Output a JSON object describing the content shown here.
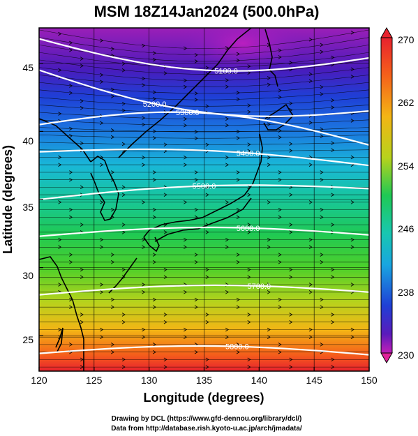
{
  "title": "MSM 18Z14Jan2024 (500.0hPa)",
  "xlabel": "Longitude (degrees)",
  "ylabel": "Latitude  (degrees)",
  "credits": [
    "Drawing by DCL (https://www.gfd-dennou.org/library/dcl/)",
    "Data from http://database.rish.kyoto-u.ac.jp/arch/jmadata/"
  ],
  "map": {
    "lon_range": [
      120,
      150
    ],
    "lat_range": [
      22.4,
      47.6
    ],
    "x_ticks": [
      "120",
      "125",
      "130",
      "135",
      "140",
      "145",
      "150"
    ],
    "y_ticks": [
      "25",
      "30",
      "35",
      "40",
      "45"
    ],
    "shading_variable": "temperature (K)",
    "vector_variable": "wind",
    "contour_variable": "geopotential height (m)",
    "contours": [
      {
        "label": "5100.0",
        "lat_at_west": 46.8,
        "lat_at_east": 45.4,
        "label_lon": 137.0
      },
      {
        "label": "5200.0",
        "lat_at_west": 44.5,
        "lat_at_east": 41.5,
        "label_lon": 130.5
      },
      {
        "label": "5300.0",
        "lat_at_west": 40.5,
        "lat_at_east": 39.0,
        "label_lon": 133.5
      },
      {
        "label": "5400.0",
        "lat_at_west": 38.5,
        "lat_at_east": 37.5,
        "label_lon": 139.0
      },
      {
        "label": "5500.0",
        "lat_at_west": 35.0,
        "lat_at_east": 35.8,
        "label_lon": 135.0
      },
      {
        "label": "5600.0",
        "lat_at_west": 32.3,
        "lat_at_east": 32.4,
        "label_lon": 139.0
      },
      {
        "label": "5700.0",
        "lat_at_west": 28.0,
        "lat_at_east": 28.2,
        "label_lon": 140.0
      },
      {
        "label": "5800.0",
        "lat_at_west": 23.7,
        "lat_at_east": 23.6,
        "label_lon": 138.0
      }
    ]
  },
  "colorbar": {
    "labels": [
      "270",
      "262",
      "254",
      "246",
      "238",
      "230"
    ],
    "min": 230,
    "max": 270
  },
  "colors": {
    "contour": "#ffffff",
    "coast": "#000000",
    "grid": "#000000",
    "vector": "#000000"
  }
}
